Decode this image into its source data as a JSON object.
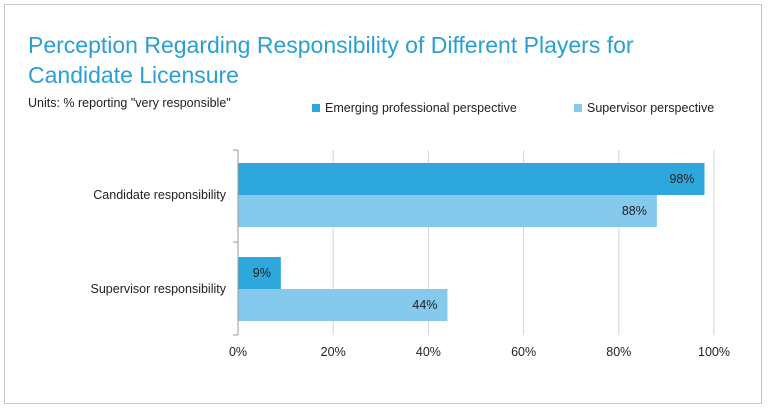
{
  "chart_data": {
    "type": "bar",
    "orientation": "horizontal",
    "title": "Perception Regarding Responsibility of Different Players for Candidate Licensure",
    "subtitle": "Units: % reporting \"very responsible\"",
    "categories": [
      "Candidate responsibility",
      "Supervisor responsibility"
    ],
    "series": [
      {
        "name": "Emerging professional perspective",
        "values": [
          98,
          9
        ],
        "labels": [
          "98%",
          "9%"
        ],
        "color": "#2ea8dc"
      },
      {
        "name": "Supervisor perspective",
        "values": [
          88,
          44
        ],
        "labels": [
          "88%",
          "44%"
        ],
        "color": "#85c9ec"
      }
    ],
    "x_ticks": [
      0,
      20,
      40,
      60,
      80,
      100
    ],
    "x_tick_labels": [
      "0%",
      "20%",
      "40%",
      "60%",
      "80%",
      "100%"
    ],
    "xlim": [
      0,
      100
    ],
    "grid": true,
    "legend_position": "top"
  }
}
